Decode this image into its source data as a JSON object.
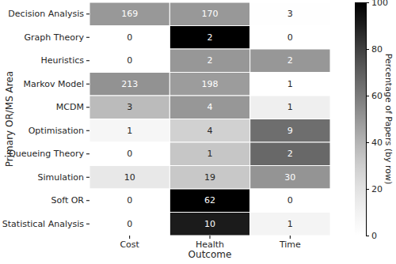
{
  "chart_data": {
    "type": "heatmap",
    "x_label": "Outcome",
    "y_label": "Primary OR/MS Area",
    "x": [
      "Cost",
      "Health",
      "Time"
    ],
    "y": [
      "Decision Analysis",
      "Graph Theory",
      "Heuristics",
      "Markov Model",
      "MCDM",
      "Optimisation",
      "Queueing Theory",
      "Simulation",
      "Soft OR",
      "Statistical Analysis"
    ],
    "values": [
      [
        169,
        170,
        3
      ],
      [
        0,
        2,
        0
      ],
      [
        0,
        2,
        2
      ],
      [
        213,
        198,
        1
      ],
      [
        3,
        4,
        1
      ],
      [
        1,
        4,
        9
      ],
      [
        0,
        1,
        2
      ],
      [
        10,
        19,
        30
      ],
      [
        0,
        62,
        0
      ],
      [
        0,
        10,
        1
      ]
    ],
    "percentages": [
      [
        49.4,
        49.7,
        0.9
      ],
      [
        0,
        100,
        0
      ],
      [
        0,
        50,
        50
      ],
      [
        51.7,
        48.1,
        0.2
      ],
      [
        37.5,
        50,
        12.5
      ],
      [
        7.1,
        28.6,
        64.3
      ],
      [
        0,
        33.3,
        66.7
      ],
      [
        16.9,
        32.2,
        50.8
      ],
      [
        0,
        100,
        0
      ],
      [
        0,
        90.9,
        9.1
      ]
    ],
    "colorbar": {
      "label": "Percentage of Papers (by row)",
      "range": [
        0,
        100
      ],
      "ticks": [
        0,
        20,
        40,
        60,
        80,
        100
      ]
    },
    "data_labels": true
  }
}
